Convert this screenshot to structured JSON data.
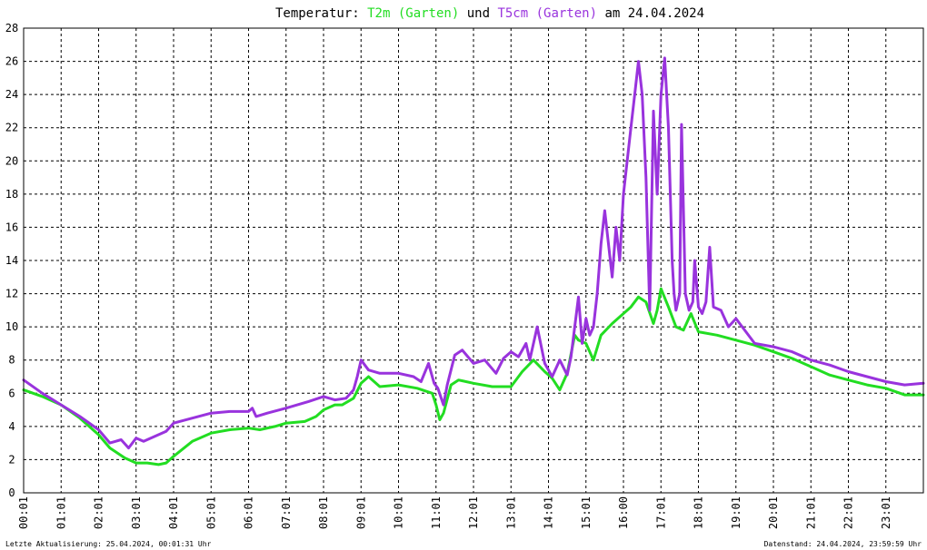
{
  "title": {
    "prefix": "Temperatur: ",
    "series1": "T2m (Garten)",
    "middle": " und ",
    "series2": "T5cm (Garten)",
    "suffix": " am 24.04.2024"
  },
  "footer": {
    "left": "Letzte Aktualisierung: 25.04.2024, 00:01:31 Uhr",
    "right": "Datenstand: 24.04.2024, 23:59:59 Uhr"
  },
  "colors": {
    "T2m": "#22dd22",
    "T5cm": "#9933dd",
    "grid": "#000000",
    "background": "#ffffff"
  },
  "chart_data": {
    "type": "line",
    "title": "Temperatur: T2m (Garten) und T5cm (Garten) am 24.04.2024",
    "xlabel": "",
    "ylabel": "",
    "xlim": [
      0,
      24
    ],
    "ylim": [
      0,
      28
    ],
    "grid": true,
    "x_ticks": [
      "00:01",
      "01:01",
      "02:01",
      "03:01",
      "04:01",
      "05:01",
      "06:01",
      "07:01",
      "08:01",
      "09:01",
      "10:01",
      "11:01",
      "12:01",
      "13:01",
      "14:01",
      "15:01",
      "16:00",
      "17:01",
      "18:01",
      "19:01",
      "20:01",
      "21:01",
      "22:01",
      "23:01"
    ],
    "y_ticks": [
      "0",
      "2",
      "4",
      "6",
      "8",
      "10",
      "12",
      "14",
      "16",
      "18",
      "20",
      "22",
      "24",
      "26",
      "28"
    ],
    "series": [
      {
        "name": "T2m (Garten)",
        "x": [
          0,
          0.5,
          1,
          1.5,
          2,
          2.3,
          2.7,
          3,
          3.3,
          3.6,
          3.8,
          4,
          4.5,
          5,
          5.5,
          6,
          6.3,
          6.7,
          7,
          7.5,
          7.8,
          8,
          8.3,
          8.5,
          8.8,
          9,
          9.2,
          9.5,
          10,
          10.5,
          10.9,
          11,
          11.1,
          11.2,
          11.4,
          11.6,
          12,
          12.5,
          13,
          13.3,
          13.6,
          13.9,
          14.1,
          14.3,
          14.5,
          14.7,
          14.8,
          15,
          15.2,
          15.4,
          15.7,
          16,
          16.2,
          16.4,
          16.6,
          16.8,
          16.9,
          17,
          17.2,
          17.4,
          17.6,
          17.8,
          18,
          18.5,
          19,
          19.5,
          20,
          20.5,
          21,
          21.5,
          22,
          22.5,
          23,
          23.5,
          24
        ],
        "values": [
          6.2,
          5.8,
          5.3,
          4.5,
          3.5,
          2.7,
          2.1,
          1.8,
          1.8,
          1.7,
          1.8,
          2.2,
          3.1,
          3.6,
          3.8,
          3.9,
          3.8,
          4.0,
          4.2,
          4.3,
          4.6,
          5.0,
          5.3,
          5.3,
          5.7,
          6.6,
          7.0,
          6.4,
          6.5,
          6.3,
          6.0,
          5.3,
          4.4,
          4.8,
          6.5,
          6.8,
          6.6,
          6.4,
          6.4,
          7.3,
          8.0,
          7.3,
          6.9,
          6.2,
          7.2,
          9.5,
          9.2,
          9.0,
          8.0,
          9.5,
          10.2,
          10.8,
          11.2,
          11.8,
          11.5,
          10.2,
          11.0,
          12.3,
          11.2,
          10.0,
          9.8,
          10.8,
          9.7,
          9.5,
          9.2,
          8.9,
          8.5,
          8.1,
          7.6,
          7.1,
          6.8,
          6.5,
          6.3,
          5.9,
          5.9
        ]
      },
      {
        "name": "T5cm (Garten)",
        "x": [
          0,
          0.5,
          1,
          1.5,
          2,
          2.3,
          2.6,
          2.8,
          3,
          3.2,
          3.5,
          3.8,
          4,
          4.5,
          5,
          5.5,
          6,
          6.1,
          6.2,
          6.5,
          7,
          7.3,
          7.6,
          8,
          8.3,
          8.6,
          8.8,
          8.9,
          9,
          9.2,
          9.5,
          10,
          10.4,
          10.6,
          10.8,
          10.95,
          11.05,
          11.2,
          11.3,
          11.5,
          11.7,
          12,
          12.3,
          12.6,
          12.8,
          13,
          13.2,
          13.4,
          13.5,
          13.7,
          13.9,
          14.1,
          14.3,
          14.5,
          14.6,
          14.7,
          14.8,
          14.9,
          15,
          15.1,
          15.2,
          15.3,
          15.4,
          15.5,
          15.6,
          15.7,
          15.8,
          15.9,
          16,
          16.1,
          16.2,
          16.3,
          16.4,
          16.5,
          16.6,
          16.7,
          16.8,
          16.9,
          17,
          17.1,
          17.2,
          17.3,
          17.35,
          17.4,
          17.5,
          17.55,
          17.65,
          17.75,
          17.85,
          17.9,
          18,
          18.1,
          18.2,
          18.3,
          18.4,
          18.6,
          18.8,
          19,
          19.5,
          20,
          20.5,
          21,
          21.5,
          22,
          22.5,
          23,
          23.5,
          24
        ],
        "values": [
          6.8,
          6.0,
          5.3,
          4.6,
          3.8,
          3.0,
          3.2,
          2.7,
          3.3,
          3.1,
          3.4,
          3.7,
          4.2,
          4.5,
          4.8,
          4.9,
          4.9,
          5.1,
          4.6,
          4.8,
          5.1,
          5.3,
          5.5,
          5.8,
          5.6,
          5.7,
          6.2,
          7.0,
          8.0,
          7.4,
          7.2,
          7.2,
          7.0,
          6.7,
          7.8,
          6.6,
          6.3,
          5.3,
          6.5,
          8.3,
          8.6,
          7.8,
          8.0,
          7.2,
          8.1,
          8.5,
          8.2,
          9.0,
          8.0,
          10.0,
          7.8,
          7.0,
          8.0,
          7.1,
          8.2,
          10.0,
          11.8,
          9.0,
          10.5,
          9.5,
          10.0,
          12.0,
          15.0,
          17.0,
          15.0,
          13.0,
          16.0,
          14.0,
          18.0,
          20.0,
          22.0,
          24.0,
          26.0,
          24.0,
          19.0,
          11.0,
          23.0,
          18.0,
          24.0,
          26.2,
          22.0,
          14.0,
          12.0,
          11.0,
          12.0,
          22.2,
          12.0,
          11.0,
          11.5,
          14.0,
          11.2,
          10.8,
          11.5,
          14.8,
          11.2,
          11.0,
          10.0,
          10.5,
          9.0,
          8.8,
          8.5,
          8.0,
          7.7,
          7.3,
          7.0,
          6.7,
          6.5,
          6.6
        ]
      }
    ]
  }
}
